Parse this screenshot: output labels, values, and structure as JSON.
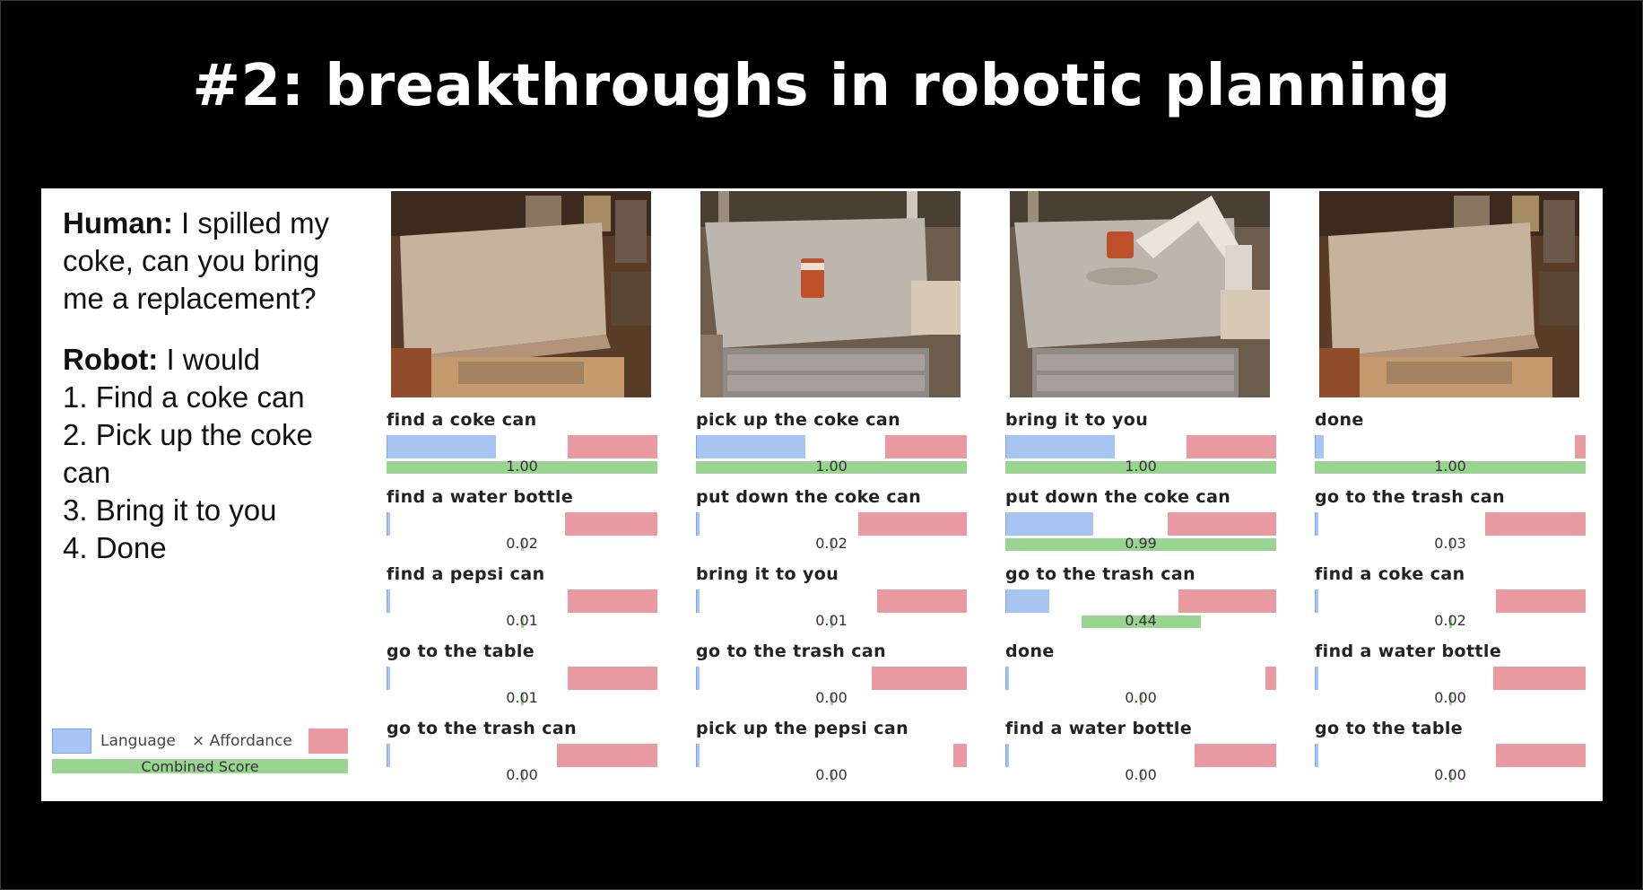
{
  "title": "#2: breakthroughs in robotic planning",
  "dialog": {
    "human_label": "Human:",
    "human_text": " I spilled my coke, can you bring me a replacement?",
    "robot_label": "Robot:",
    "robot_text": " I would",
    "steps": [
      "1. Find a coke can",
      "2. Pick up the coke can",
      "3. Bring it to you",
      "4. Done"
    ]
  },
  "legend": {
    "language": "Language",
    "affordance": "× Affordance",
    "combined": "Combined Score"
  },
  "colors": {
    "language": "#a8c4f3",
    "affordance": "#e99aa1",
    "combined": "#99d591"
  },
  "columns": [
    {
      "photo": "table-scene-empty",
      "options": [
        {
          "label": "find a coke can",
          "language": 0.4,
          "affordance": 0.33,
          "score": "1.00",
          "combined": 1.0
        },
        {
          "label": "find a water bottle",
          "language": 0.01,
          "affordance": 0.34,
          "score": "0.02",
          "combined": 0.02
        },
        {
          "label": "find a pepsi can",
          "language": 0.01,
          "affordance": 0.33,
          "score": "0.01",
          "combined": 0.01
        },
        {
          "label": "go to the table",
          "language": 0.01,
          "affordance": 0.33,
          "score": "0.01",
          "combined": 0.01
        },
        {
          "label": "go to the trash can",
          "language": 0.01,
          "affordance": 0.37,
          "score": "0.00",
          "combined": 0.0
        }
      ]
    },
    {
      "photo": "table-scene-coke-can",
      "options": [
        {
          "label": "pick up the coke can",
          "language": 0.4,
          "affordance": 0.3,
          "score": "1.00",
          "combined": 1.0
        },
        {
          "label": "put down the coke can",
          "language": 0.01,
          "affordance": 0.4,
          "score": "0.02",
          "combined": 0.02
        },
        {
          "label": "bring it to you",
          "language": 0.01,
          "affordance": 0.33,
          "score": "0.01",
          "combined": 0.01
        },
        {
          "label": "go to the trash can",
          "language": 0.01,
          "affordance": 0.35,
          "score": "0.00",
          "combined": 0.0
        },
        {
          "label": "pick up the pepsi can",
          "language": 0.01,
          "affordance": 0.05,
          "score": "0.00",
          "combined": 0.0
        }
      ]
    },
    {
      "photo": "table-scene-robot-arm",
      "options": [
        {
          "label": "bring it to you",
          "language": 0.4,
          "affordance": 0.33,
          "score": "1.00",
          "combined": 1.0
        },
        {
          "label": "put down the coke can",
          "language": 0.32,
          "affordance": 0.4,
          "score": "0.99",
          "combined": 0.99
        },
        {
          "label": "go to the trash can",
          "language": 0.16,
          "affordance": 0.36,
          "score": "0.44",
          "combined": 0.44
        },
        {
          "label": "done",
          "language": 0.01,
          "affordance": 0.04,
          "score": "0.00",
          "combined": 0.0
        },
        {
          "label": "find a water bottle",
          "language": 0.01,
          "affordance": 0.3,
          "score": "0.00",
          "combined": 0.0
        }
      ]
    },
    {
      "photo": "table-scene-empty",
      "options": [
        {
          "label": "done",
          "language": 0.03,
          "affordance": 0.04,
          "score": "1.00",
          "combined": 1.0
        },
        {
          "label": "go to the trash can",
          "language": 0.01,
          "affordance": 0.37,
          "score": "0.03",
          "combined": 0.03
        },
        {
          "label": "find a coke can",
          "language": 0.01,
          "affordance": 0.33,
          "score": "0.02",
          "combined": 0.02
        },
        {
          "label": "find a water bottle",
          "language": 0.01,
          "affordance": 0.34,
          "score": "0.00",
          "combined": 0.0
        },
        {
          "label": "go to the table",
          "language": 0.01,
          "affordance": 0.33,
          "score": "0.00",
          "combined": 0.0
        }
      ]
    }
  ]
}
